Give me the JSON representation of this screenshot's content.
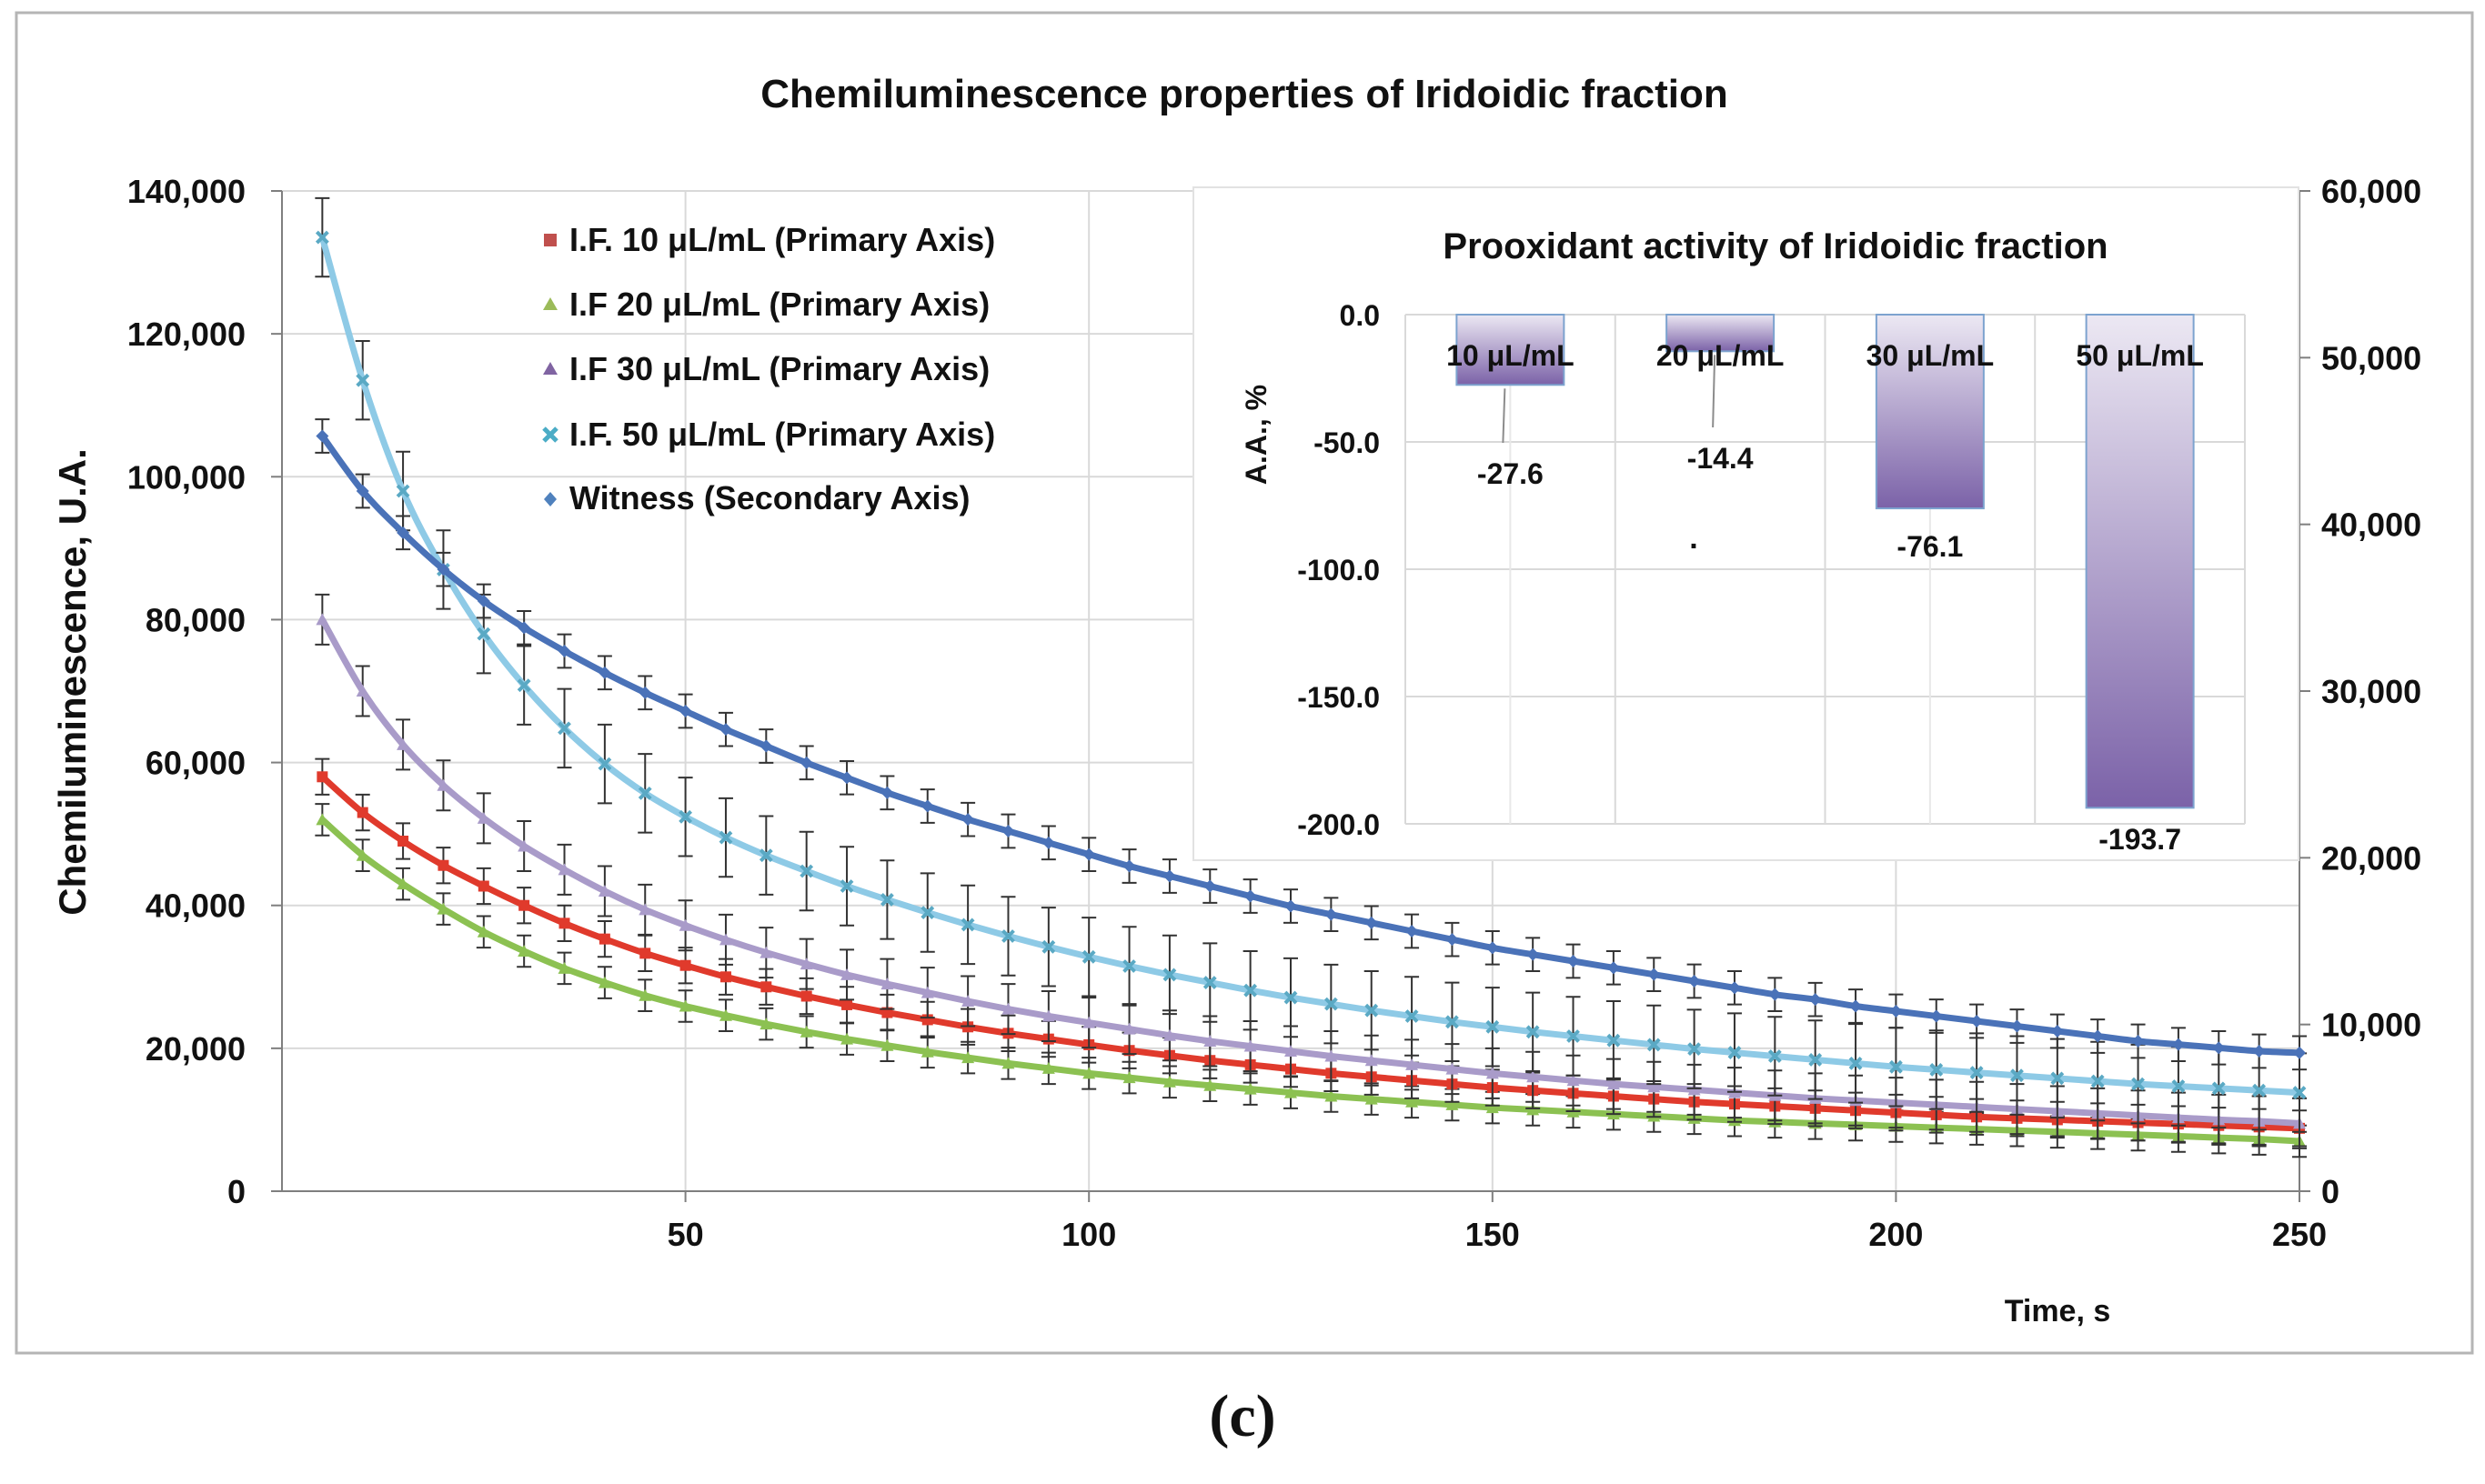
{
  "caption": "(c)",
  "chart_data": [
    {
      "type": "line",
      "title": "Chemiluminescence properties of Iridoidic fraction",
      "xlabel": "Time, s",
      "ylabel": "Chemiluminescence, U.A.",
      "xlim": [
        0,
        250
      ],
      "ylim": [
        0,
        140000
      ],
      "y2lim": [
        0,
        60000
      ],
      "x_ticks": [
        50,
        100,
        150,
        200,
        250
      ],
      "y_ticks": [
        0,
        20000,
        40000,
        60000,
        80000,
        100000,
        120000,
        140000
      ],
      "y_tick_labels": [
        "0",
        "20,000",
        "40,000",
        "60,000",
        "80,000",
        "100,000",
        "120,000",
        "140,000"
      ],
      "y2_ticks": [
        0,
        10000,
        20000,
        30000,
        40000,
        50000,
        60000
      ],
      "y2_tick_labels": [
        "0",
        "10,000",
        "20,000",
        "30,000",
        "40,000",
        "50,000",
        "60,000"
      ],
      "grid": true,
      "legend_position": "top-left",
      "x": [
        5,
        10,
        15,
        20,
        25,
        30,
        35,
        40,
        45,
        50,
        55,
        60,
        65,
        70,
        75,
        80,
        85,
        90,
        95,
        100,
        105,
        110,
        115,
        120,
        125,
        130,
        135,
        140,
        145,
        150,
        155,
        160,
        165,
        170,
        175,
        180,
        185,
        190,
        195,
        200,
        205,
        210,
        215,
        220,
        225,
        230,
        235,
        240,
        245,
        250
      ],
      "series": [
        {
          "name": "I.F. 10 μL/mL (Primary Axis)",
          "axis": "primary",
          "color": "#e03a2c",
          "marker": "square",
          "values": [
            58000,
            53000,
            49000,
            45600,
            42700,
            40000,
            37500,
            35300,
            33300,
            31600,
            30000,
            28600,
            27300,
            26100,
            25000,
            24000,
            23000,
            22100,
            21300,
            20500,
            19700,
            19000,
            18300,
            17700,
            17100,
            16500,
            16000,
            15500,
            15000,
            14500,
            14100,
            13700,
            13300,
            12900,
            12500,
            12200,
            11900,
            11600,
            11300,
            11000,
            10700,
            10400,
            10200,
            10000,
            9800,
            9600,
            9400,
            9200,
            9000,
            8800
          ],
          "error": 2500
        },
        {
          "name": "I.F 20 μL/mL (Primary Axis)",
          "axis": "primary",
          "color": "#8cc152",
          "marker": "triangle",
          "values": [
            52000,
            47000,
            43000,
            39500,
            36300,
            33600,
            31200,
            29200,
            27400,
            25900,
            24600,
            23400,
            22300,
            21300,
            20400,
            19500,
            18700,
            17900,
            17200,
            16500,
            15900,
            15300,
            14800,
            14300,
            13800,
            13300,
            12900,
            12500,
            12100,
            11700,
            11400,
            11100,
            10800,
            10500,
            10200,
            9900,
            9700,
            9500,
            9300,
            9100,
            8900,
            8700,
            8500,
            8300,
            8100,
            7900,
            7700,
            7500,
            7300,
            7000
          ],
          "error": 2200
        },
        {
          "name": "I.F 30 μL/mL (Primary Axis)",
          "axis": "primary",
          "color": "#a99bc9",
          "marker": "triangle",
          "values": [
            80000,
            70000,
            62500,
            56800,
            52200,
            48300,
            45000,
            42000,
            39400,
            37200,
            35200,
            33400,
            31800,
            30300,
            29000,
            27800,
            26600,
            25500,
            24500,
            23600,
            22700,
            21800,
            21000,
            20300,
            19600,
            18900,
            18300,
            17700,
            17100,
            16500,
            16000,
            15500,
            15000,
            14600,
            14200,
            13800,
            13400,
            13000,
            12700,
            12400,
            12100,
            11800,
            11500,
            11200,
            10900,
            10600,
            10300,
            10000,
            9800,
            9500
          ],
          "error": 3500
        },
        {
          "name": "I.F. 50 μL/mL (Primary Axis)",
          "axis": "primary",
          "color": "#8ecae6",
          "marker": "x",
          "values": [
            133500,
            113500,
            98000,
            87000,
            78000,
            70800,
            64800,
            59800,
            55700,
            52400,
            49500,
            47000,
            44800,
            42700,
            40800,
            39000,
            37300,
            35700,
            34200,
            32800,
            31500,
            30300,
            29200,
            28100,
            27100,
            26200,
            25300,
            24500,
            23700,
            23000,
            22300,
            21700,
            21100,
            20500,
            19900,
            19400,
            18900,
            18400,
            17900,
            17400,
            17000,
            16600,
            16200,
            15800,
            15400,
            15000,
            14700,
            14400,
            14100,
            13800
          ],
          "error": 5500
        },
        {
          "name": "Witness (Secondary Axis)",
          "axis": "secondary",
          "color": "#4a72b8",
          "marker": "diamond",
          "values": [
            45300,
            42000,
            39500,
            37300,
            35400,
            33800,
            32400,
            31100,
            29900,
            28800,
            27700,
            26700,
            25700,
            24800,
            23900,
            23100,
            22300,
            21600,
            20900,
            20200,
            19500,
            18900,
            18300,
            17700,
            17100,
            16600,
            16100,
            15600,
            15100,
            14600,
            14200,
            13800,
            13400,
            13000,
            12600,
            12200,
            11800,
            11500,
            11100,
            10800,
            10500,
            10200,
            9900,
            9600,
            9300,
            9000,
            8800,
            8600,
            8400,
            8300
          ],
          "error": 1000
        }
      ]
    },
    {
      "type": "bar",
      "title": "Prooxidant activity of Iridoidic fraction",
      "xlabel": "",
      "ylabel": "A.A., %",
      "ylim": [
        -200,
        0
      ],
      "y_ticks": [
        0,
        -50,
        -100,
        -150,
        -200
      ],
      "y_tick_labels": [
        "0.0",
        "-50.0",
        "-100.0",
        "-150.0",
        "-200.0"
      ],
      "categories": [
        "10 μL/mL",
        "20 μL/mL",
        "30 μL/mL",
        "50  μL/mL"
      ],
      "values": [
        -27.6,
        -14.4,
        -76.1,
        -193.7
      ],
      "data_labels": [
        "-27.6",
        "-14.4",
        "-76.1",
        "-193.7"
      ],
      "stray_mark": "."
    }
  ]
}
